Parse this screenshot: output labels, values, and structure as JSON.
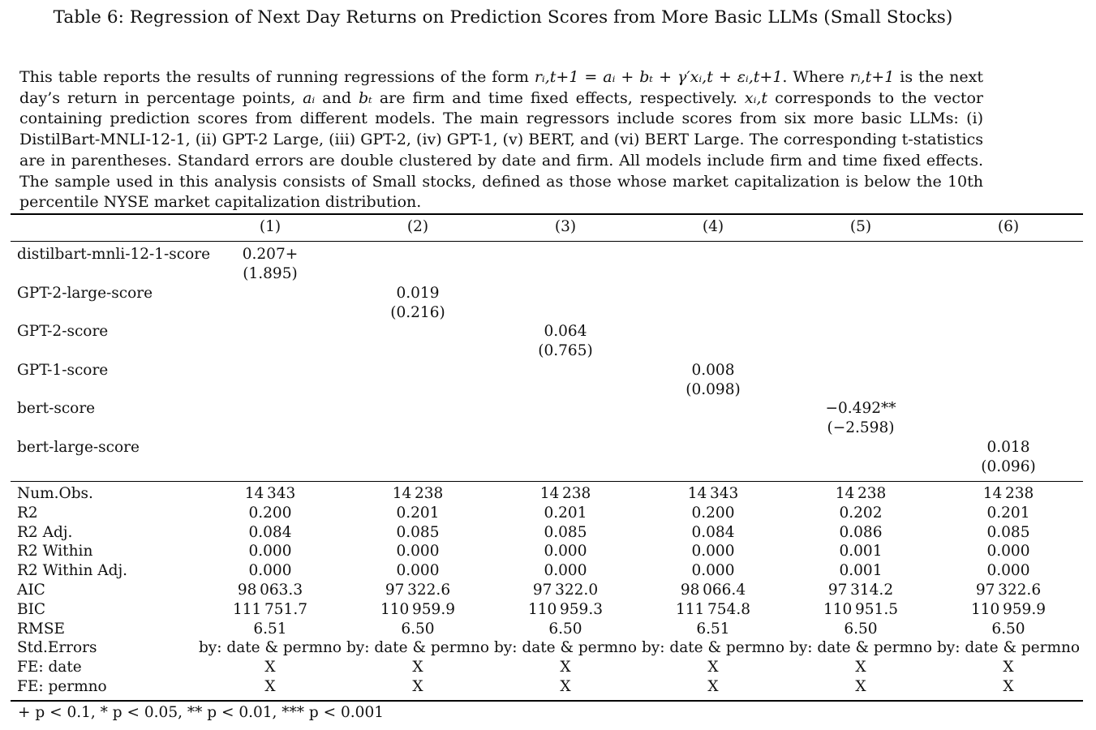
{
  "title": "Table 6: Regression of Next Day Returns on Prediction Scores from More Basic LLMs (Small Stocks)",
  "caption": {
    "part1": "This table reports the results of running regressions of the form ",
    "eq1": "rᵢ,t+1 = aᵢ + bₜ + γ′xᵢ,t + εᵢ,t+1",
    "part2": ". Where ",
    "eq2": "rᵢ,t+1",
    "part3": " is the next day’s return in percentage points, ",
    "eq3": "aᵢ",
    "part4": " and ",
    "eq4": "bₜ",
    "part5": " are firm and time fixed effects, respectively. ",
    "eq5": "xᵢ,t",
    "part6": " corresponds to the vector containing prediction scores from different models. The main regressors include scores from six more basic LLMs: (i) DistilBart-MNLI-12-1, (ii) GPT-2 Large, (iii) GPT-2, (iv) GPT-1, (v) BERT, and (vi) BERT Large. The corresponding t-statistics are in parentheses. Standard errors are double clustered by date and firm. All models include firm and time fixed effects. The sample used in this analysis consists of Small stocks, defined as those whose market capitalization is below the 10th percentile NYSE market capitalization distribution."
  },
  "table": {
    "columns": [
      "(1)",
      "(2)",
      "(3)",
      "(4)",
      "(5)",
      "(6)"
    ],
    "coefficients": [
      {
        "label": "distilbart-mnli-12-1-score",
        "col": 0,
        "estimate": "0.207+",
        "tstat": "(1.895)"
      },
      {
        "label": "GPT-2-large-score",
        "col": 1,
        "estimate": "0.019",
        "tstat": "(0.216)"
      },
      {
        "label": "GPT-2-score",
        "col": 2,
        "estimate": "0.064",
        "tstat": "(0.765)"
      },
      {
        "label": "GPT-1-score",
        "col": 3,
        "estimate": "0.008",
        "tstat": "(0.098)"
      },
      {
        "label": "bert-score",
        "col": 4,
        "estimate": "−0.492**",
        "tstat": "(−2.598)"
      },
      {
        "label": "bert-large-score",
        "col": 5,
        "estimate": "0.018",
        "tstat": "(0.096)"
      }
    ],
    "stats": [
      {
        "label": "Num.Obs.",
        "values": [
          "14 343",
          "14 238",
          "14 238",
          "14 343",
          "14 238",
          "14 238"
        ]
      },
      {
        "label": "R2",
        "values": [
          "0.200",
          "0.201",
          "0.201",
          "0.200",
          "0.202",
          "0.201"
        ]
      },
      {
        "label": "R2 Adj.",
        "values": [
          "0.084",
          "0.085",
          "0.085",
          "0.084",
          "0.086",
          "0.085"
        ]
      },
      {
        "label": "R2 Within",
        "values": [
          "0.000",
          "0.000",
          "0.000",
          "0.000",
          "0.001",
          "0.000"
        ]
      },
      {
        "label": "R2 Within Adj.",
        "values": [
          "0.000",
          "0.000",
          "0.000",
          "0.000",
          "0.001",
          "0.000"
        ]
      },
      {
        "label": "AIC",
        "values": [
          "98 063.3",
          "97 322.6",
          "97 322.0",
          "98 066.4",
          "97 314.2",
          "97 322.6"
        ]
      },
      {
        "label": "BIC",
        "values": [
          "111 751.7",
          "110 959.9",
          "110 959.3",
          "111 754.8",
          "110 951.5",
          "110 959.9"
        ]
      },
      {
        "label": "RMSE",
        "values": [
          "6.51",
          "6.50",
          "6.50",
          "6.51",
          "6.50",
          "6.50"
        ]
      },
      {
        "label": "Std.Errors",
        "values": [
          "by: date & permno",
          "by: date & permno",
          "by: date & permno",
          "by: date & permno",
          "by: date & permno",
          "by: date & permno"
        ]
      },
      {
        "label": "FE: date",
        "values": [
          "X",
          "X",
          "X",
          "X",
          "X",
          "X"
        ]
      },
      {
        "label": "FE: permno",
        "values": [
          "X",
          "X",
          "X",
          "X",
          "X",
          "X"
        ]
      }
    ],
    "footnote": "+ p < 0.1, * p < 0.05, ** p < 0.01, *** p < 0.001"
  }
}
